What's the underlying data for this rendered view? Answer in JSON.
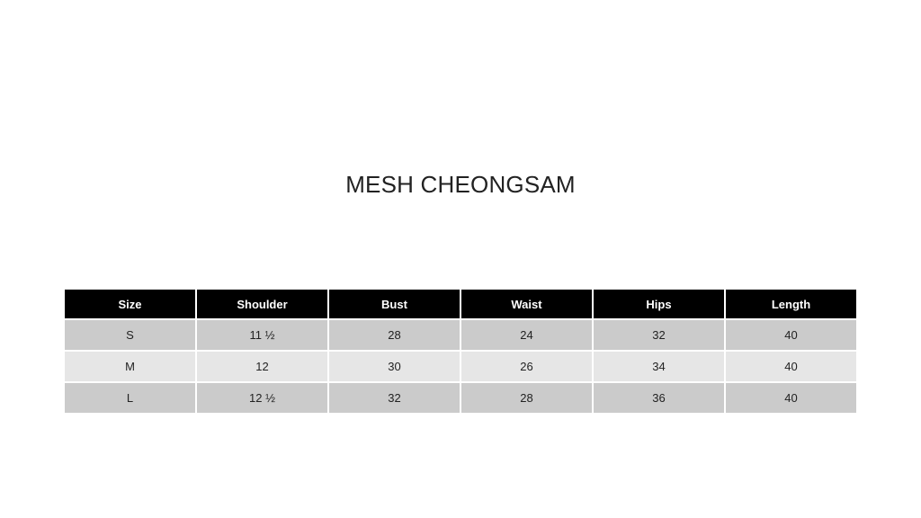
{
  "title": "MESH CHEONGSAM",
  "table": {
    "headers": [
      "Size",
      "Shoulder",
      "Bust",
      "Waist",
      "Hips",
      "Length"
    ],
    "rows": [
      [
        "S",
        "11 ½",
        "28",
        "24",
        "32",
        "40"
      ],
      [
        "M",
        "12",
        "30",
        "26",
        "34",
        "40"
      ],
      [
        "L",
        "12 ½",
        "32",
        "28",
        "36",
        "40"
      ]
    ]
  },
  "colors": {
    "header_bg": "#000000",
    "row_odd": "#cbcbcb",
    "row_even": "#e6e6e6"
  }
}
